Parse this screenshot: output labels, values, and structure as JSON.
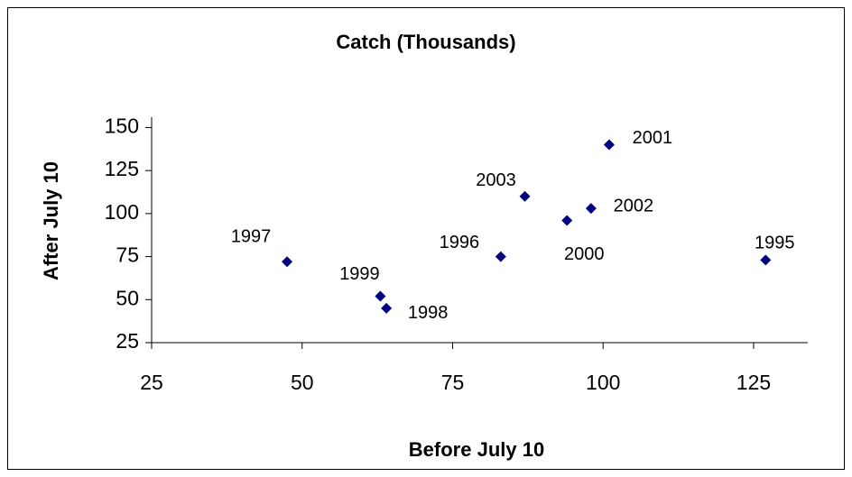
{
  "chart_data": {
    "type": "scatter",
    "title": "Catch (Thousands)",
    "x_label": "Before July 10",
    "y_label": "After July 10",
    "point_labels": [
      "1995",
      "1996",
      "1997",
      "1998",
      "1999",
      "2000",
      "2001",
      "2002",
      "2003"
    ],
    "x": [
      127,
      83,
      47.5,
      64,
      63,
      94,
      101,
      98,
      87
    ],
    "values": [
      73,
      75,
      72,
      45,
      52,
      96,
      140,
      103,
      110
    ],
    "color": "#000080",
    "xlim": [
      25,
      134
    ],
    "ylim": [
      25,
      156
    ],
    "xticks": [
      25,
      50,
      75,
      100,
      125
    ],
    "yticks": [
      25,
      50,
      75,
      100,
      125,
      150
    ],
    "grid": false
  }
}
